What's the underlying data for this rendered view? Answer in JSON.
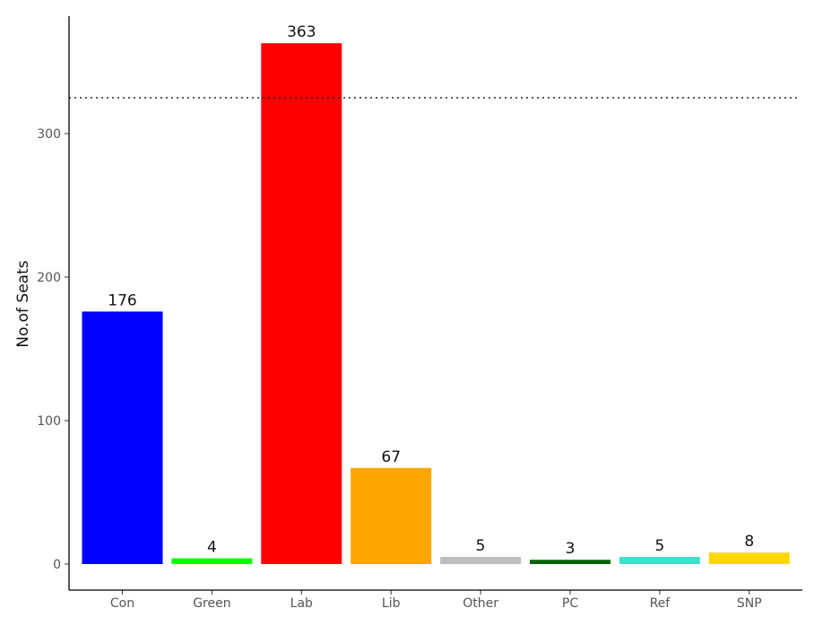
{
  "chart_data": {
    "type": "bar",
    "categories": [
      "Con",
      "Green",
      "Lab",
      "Lib",
      "Other",
      "PC",
      "Ref",
      "SNP"
    ],
    "values": [
      176,
      4,
      363,
      67,
      5,
      3,
      5,
      8
    ],
    "data_labels": [
      "176",
      "4",
      "363",
      "67",
      "5",
      "3",
      "5",
      "8"
    ],
    "colors": [
      "#0000ff",
      "#00ff00",
      "#ff0000",
      "#ffa500",
      "#bebebe",
      "#006400",
      "#40e0d0",
      "#ffd700"
    ],
    "ylabel": "No.of Seats",
    "xlabel": "",
    "ylim": [
      0,
      382
    ],
    "yticks": [
      0,
      100,
      200,
      300
    ],
    "ytick_labels": [
      "0",
      "100",
      "200",
      "300"
    ],
    "reference_line": {
      "value": 325,
      "style": "dotted"
    },
    "grid": false,
    "legend": "none"
  }
}
